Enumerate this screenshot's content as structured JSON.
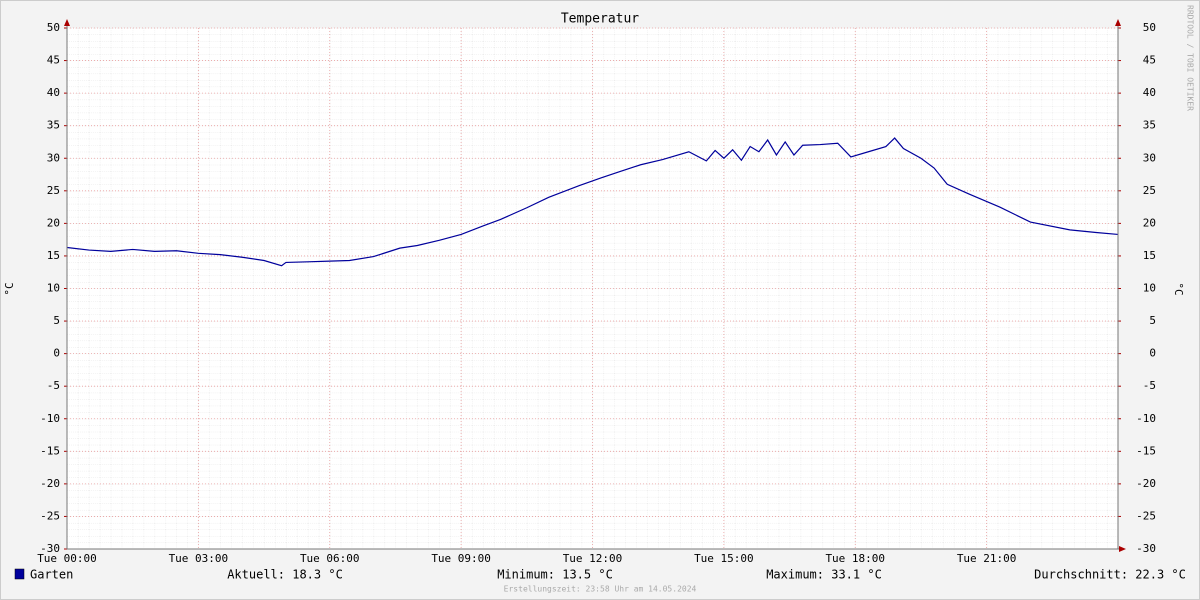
{
  "chart_data": {
    "type": "line",
    "title": "Temperatur",
    "ylabel": "°C",
    "y2label": "°C",
    "watermark": "RRDTOOL / TOBI OETIKER",
    "footer": "Erstellungszeit: 23:58 Uhr am 14.05.2024",
    "xlim": [
      0,
      24
    ],
    "xticks": [
      {
        "value": 0,
        "label": "Tue 00:00"
      },
      {
        "value": 3,
        "label": "Tue 03:00"
      },
      {
        "value": 6,
        "label": "Tue 06:00"
      },
      {
        "value": 9,
        "label": "Tue 09:00"
      },
      {
        "value": 12,
        "label": "Tue 12:00"
      },
      {
        "value": 15,
        "label": "Tue 15:00"
      },
      {
        "value": 18,
        "label": "Tue 18:00"
      },
      {
        "value": 21,
        "label": "Tue 21:00"
      }
    ],
    "ylim": [
      -30,
      50
    ],
    "yticks": [
      -30,
      -25,
      -20,
      -15,
      -10,
      -5,
      0,
      5,
      10,
      15,
      20,
      25,
      30,
      35,
      40,
      45,
      50
    ],
    "y2lim": [
      -30,
      50
    ],
    "y2ticks": [
      -30,
      -25,
      -20,
      -15,
      -10,
      -5,
      0,
      5,
      10,
      15,
      20,
      25,
      30,
      35,
      40,
      45,
      50
    ],
    "grid": true,
    "x": [
      0,
      0.5,
      1,
      1.5,
      2,
      2.5,
      3,
      3.5,
      4,
      4.5,
      4.9,
      5.0,
      5.5,
      6,
      6.45,
      7,
      7.6,
      8,
      8.5,
      9,
      9.5,
      9.9,
      10.5,
      11,
      11.7,
      12.2,
      12.6,
      13.1,
      13.6,
      14.2,
      14.6,
      14.8,
      15.0,
      15.2,
      15.4,
      15.6,
      15.8,
      16.0,
      16.2,
      16.4,
      16.6,
      16.8,
      17.2,
      17.6,
      17.9,
      18.3,
      18.7,
      18.9,
      19.1,
      19.5,
      19.8,
      20.1,
      20.6,
      21.3,
      22,
      22.9,
      23.5,
      24
    ],
    "series": [
      {
        "name": "Garten",
        "color": "#00009c",
        "values": [
          16.3,
          15.9,
          15.7,
          16.0,
          15.7,
          15.8,
          15.4,
          15.2,
          14.8,
          14.3,
          13.5,
          14.0,
          14.1,
          14.2,
          14.3,
          14.9,
          16.2,
          16.6,
          17.4,
          18.3,
          19.6,
          20.6,
          22.4,
          24.0,
          25.8,
          27.0,
          27.9,
          29.0,
          29.8,
          31.0,
          29.6,
          31.2,
          30.0,
          31.3,
          29.7,
          31.8,
          31.0,
          32.8,
          30.5,
          32.5,
          30.5,
          32.0,
          32.1,
          32.3,
          30.2,
          31.0,
          31.8,
          33.1,
          31.5,
          30.0,
          28.5,
          26.0,
          24.5,
          22.5,
          20.2,
          19.0,
          18.6,
          18.3
        ]
      }
    ],
    "stats": [
      "Aktuell: 18.3 °C",
      "Minimum: 13.5 °C",
      "Maximum: 33.1 °C",
      "Durchschnitt: 22.3 °C"
    ]
  }
}
